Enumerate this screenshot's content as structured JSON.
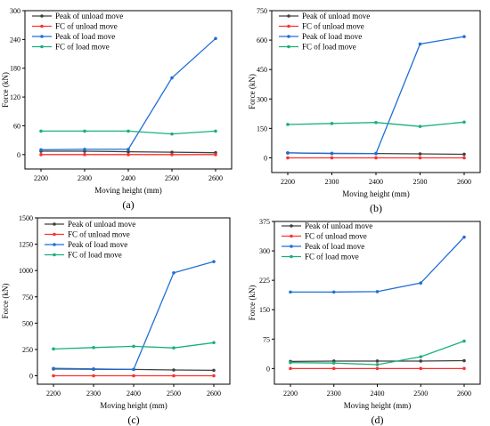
{
  "colors": {
    "peak_unload": "#404040",
    "fc_unload": "#ff3030",
    "peak_load": "#1f6fd6",
    "fc_load": "#19b07a"
  },
  "chart_data": [
    {
      "type": "line",
      "panel_label": "(a)",
      "xlabel": "Moving height (mm)",
      "ylabel": "Force (kN)",
      "x": [
        2200,
        2300,
        2400,
        2500,
        2600
      ],
      "xticks": [
        "2200",
        "2300",
        "2400",
        "2500",
        "2600"
      ],
      "ylim": [
        -30,
        300
      ],
      "yticks": [
        0,
        60,
        120,
        180,
        240,
        300
      ],
      "legend": "top-left",
      "grid": false,
      "series": [
        {
          "name": "Peak of unload move",
          "color": "#404040",
          "values": [
            7,
            7,
            6,
            5,
            4
          ]
        },
        {
          "name": "FC of unload move",
          "color": "#ff3030",
          "values": [
            0,
            0,
            0,
            0,
            0
          ]
        },
        {
          "name": "Peak of load move",
          "color": "#1f6fd6",
          "values": [
            10,
            11,
            11,
            160,
            242
          ]
        },
        {
          "name": "FC of load move",
          "color": "#19b07a",
          "values": [
            49,
            49,
            49,
            43,
            49
          ]
        }
      ]
    },
    {
      "type": "line",
      "panel_label": "(b)",
      "xlabel": "Moving height (mm)",
      "ylabel": "Force (kN)",
      "x": [
        2200,
        2300,
        2400,
        2500,
        2600
      ],
      "xticks": [
        "2200",
        "2300",
        "2400",
        "2500",
        "2600"
      ],
      "ylim": [
        -75,
        750
      ],
      "yticks": [
        0,
        150,
        300,
        450,
        600,
        750
      ],
      "legend": "top-left",
      "grid": false,
      "series": [
        {
          "name": "Peak of unload move",
          "color": "#404040",
          "values": [
            25,
            22,
            22,
            20,
            18
          ]
        },
        {
          "name": "FC of unload move",
          "color": "#ff3030",
          "values": [
            0,
            0,
            0,
            0,
            0
          ]
        },
        {
          "name": "Peak of load move",
          "color": "#1f6fd6",
          "values": [
            25,
            23,
            22,
            580,
            618
          ]
        },
        {
          "name": "FC of load move",
          "color": "#19b07a",
          "values": [
            170,
            175,
            180,
            160,
            182
          ]
        }
      ]
    },
    {
      "type": "line",
      "panel_label": "(c)",
      "xlabel": "Moving height (mm)",
      "ylabel": "Force (kN)",
      "x": [
        2200,
        2300,
        2400,
        2500,
        2600
      ],
      "xticks": [
        "2200",
        "2300",
        "2400",
        "2500",
        "2600"
      ],
      "ylim": [
        -80,
        1500
      ],
      "yticks": [
        0,
        250,
        500,
        750,
        1000,
        1250,
        1500
      ],
      "legend": "top-left",
      "grid": false,
      "series": [
        {
          "name": "Peak of unload move",
          "color": "#404040",
          "values": [
            65,
            62,
            60,
            55,
            52
          ]
        },
        {
          "name": "FC of unload move",
          "color": "#ff3030",
          "values": [
            0,
            0,
            0,
            0,
            0
          ]
        },
        {
          "name": "Peak of load move",
          "color": "#1f6fd6",
          "values": [
            70,
            65,
            60,
            978,
            1085
          ]
        },
        {
          "name": "FC of load move",
          "color": "#19b07a",
          "values": [
            255,
            268,
            280,
            265,
            315
          ]
        }
      ]
    },
    {
      "type": "line",
      "panel_label": "(d)",
      "xlabel": "Moving height (mm)",
      "ylabel": "Force (kN)",
      "x": [
        2200,
        2300,
        2400,
        2500,
        2600
      ],
      "xticks": [
        "2200",
        "2300",
        "2400",
        "2500",
        "2600"
      ],
      "ylim": [
        -40,
        375
      ],
      "yticks": [
        0,
        75,
        150,
        225,
        300,
        375
      ],
      "legend": "top-left",
      "grid": false,
      "series": [
        {
          "name": "Peak of unload move",
          "color": "#404040",
          "values": [
            18,
            19,
            19,
            19,
            20
          ]
        },
        {
          "name": "FC of unload move",
          "color": "#ff3030",
          "values": [
            0,
            0,
            0,
            0,
            0
          ]
        },
        {
          "name": "Peak of load move",
          "color": "#1f6fd6",
          "values": [
            195,
            195,
            196,
            218,
            335
          ]
        },
        {
          "name": "FC of load move",
          "color": "#19b07a",
          "values": [
            15,
            14,
            10,
            30,
            70
          ]
        }
      ]
    }
  ]
}
